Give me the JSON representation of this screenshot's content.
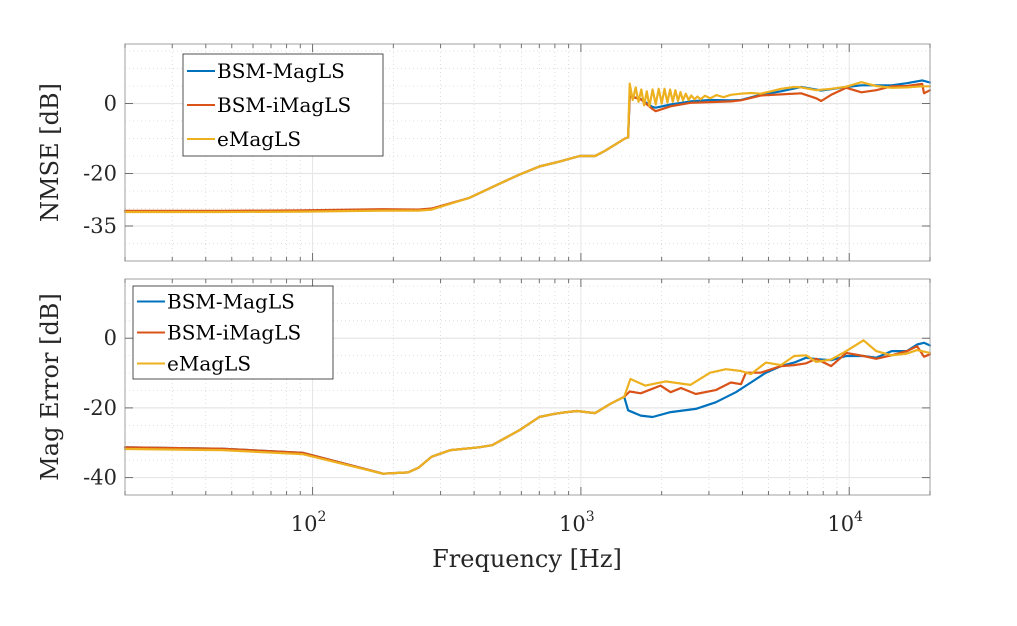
{
  "chart_data": [
    {
      "type": "line",
      "id": "nmse",
      "title": "",
      "xlabel": "",
      "ylabel": "NMSE [dB]",
      "xscale": "log",
      "xlim": [
        20,
        20000
      ],
      "ylim": [
        -45,
        17
      ],
      "yticks": [
        -35,
        -20,
        0
      ],
      "ytick_labels": [
        "-35",
        "-20",
        "0"
      ],
      "xticks": [
        100,
        1000,
        10000
      ],
      "xtick_labels": [
        "",
        "",
        ""
      ],
      "grid": true,
      "minor_grid": true,
      "legend_position": "top-left",
      "series": [
        {
          "name": "BSM-MagLS",
          "color": "#0072BD",
          "x": [
            20,
            46,
            92,
            183,
            248,
            278,
            383,
            495,
            590,
            700,
            832,
            990,
            1130,
            1230,
            1460,
            1500,
            1520,
            1670,
            1850,
            1900,
            2160,
            2560,
            3030,
            3620,
            3950,
            4680,
            5570,
            6620,
            7860,
            9750,
            11100,
            14400,
            16400,
            18700,
            20000
          ],
          "y": [
            -30.8,
            -30.8,
            -30.6,
            -30.3,
            -30.4,
            -30.1,
            -27,
            -23,
            -20.3,
            -18,
            -16.6,
            -15,
            -15,
            -13.5,
            -10,
            -9.7,
            2.1,
            1.3,
            -1.0,
            -1.2,
            -0.3,
            0.6,
            1.0,
            0.9,
            1.0,
            2.5,
            3.5,
            4.7,
            3.7,
            4.7,
            5.2,
            5.2,
            5.8,
            6.6,
            6.0
          ]
        },
        {
          "name": "BSM-iMagLS",
          "color": "#D95319",
          "x": [
            20,
            46,
            92,
            183,
            248,
            278,
            383,
            495,
            590,
            700,
            832,
            990,
            1130,
            1230,
            1460,
            1500,
            1520,
            1670,
            1850,
            1900,
            2160,
            2560,
            3030,
            3620,
            3950,
            4680,
            5570,
            6620,
            7530,
            7860,
            8570,
            9750,
            11100,
            12600,
            14400,
            16400,
            17900,
            18700,
            19000,
            20000
          ],
          "y": [
            -30.7,
            -30.7,
            -30.5,
            -30.2,
            -30.3,
            -30.0,
            -27,
            -23,
            -20.3,
            -18,
            -16.6,
            -15,
            -15,
            -13.5,
            -10,
            -9.7,
            2.1,
            1.2,
            -1.6,
            -2.2,
            -0.8,
            0.2,
            0.4,
            0.6,
            0.9,
            2.3,
            2.6,
            2.9,
            1.5,
            0.7,
            2.5,
            4.5,
            3.2,
            3.8,
            4.9,
            5.0,
            5.4,
            5.6,
            2.9,
            3.8
          ]
        },
        {
          "name": "eMagLS",
          "color": "#EDB120",
          "x": [
            20,
            46,
            92,
            183,
            248,
            278,
            383,
            495,
            590,
            700,
            832,
            990,
            1130,
            1230,
            1460,
            1500,
            1520,
            1560,
            1600,
            1640,
            1680,
            1720,
            1760,
            1800,
            1850,
            1900,
            1950,
            2000,
            2050,
            2100,
            2150,
            2200,
            2250,
            2300,
            2350,
            2400,
            2460,
            2520,
            2580,
            2650,
            2720,
            2790,
            2900,
            3030,
            3200,
            3400,
            3620,
            3950,
            4300,
            4680,
            5110,
            5570,
            6230,
            6620,
            7530,
            8570,
            9750,
            11100,
            12600,
            14400,
            16400,
            18700,
            20000
          ],
          "y": [
            -31.0,
            -31.0,
            -30.9,
            -30.6,
            -30.6,
            -30.3,
            -27,
            -23,
            -20.3,
            -18,
            -16.6,
            -15,
            -15,
            -13.5,
            -10,
            -9.7,
            5.7,
            1.0,
            4.6,
            0.5,
            4.0,
            -0.5,
            3.5,
            -0.8,
            4.0,
            -0.3,
            4.2,
            0.0,
            4.2,
            0.3,
            4.0,
            0.5,
            3.8,
            0.7,
            3.3,
            0.9,
            2.8,
            1.0,
            2.3,
            1.2,
            2.0,
            1.2,
            2.2,
            1.5,
            2.4,
            1.8,
            2.5,
            2.8,
            3.0,
            2.8,
            3.5,
            4.2,
            4.7,
            4.6,
            3.8,
            4.2,
            4.8,
            6.1,
            5.0,
            4.5,
            4.6,
            4.9,
            4.9
          ]
        }
      ]
    },
    {
      "type": "line",
      "id": "mag-error",
      "title": "",
      "xlabel": "Frequency [Hz]",
      "ylabel": "Mag Error [dB]",
      "xscale": "log",
      "xlim": [
        20,
        20000
      ],
      "ylim": [
        -45,
        17
      ],
      "yticks": [
        -40,
        -20,
        0
      ],
      "ytick_labels": [
        "-40",
        "-20",
        "0"
      ],
      "xticks": [
        100,
        1000,
        10000
      ],
      "xtick_labels": [
        "10^2",
        "10^3",
        "10^4"
      ],
      "grid": true,
      "minor_grid": true,
      "legend_position": "top-left",
      "series": [
        {
          "name": "BSM-MagLS",
          "color": "#0072BD",
          "x": [
            20,
            46,
            92,
            183,
            227,
            248,
            278,
            327,
            417,
            467,
            590,
            700,
            798,
            870,
            966,
            1130,
            1290,
            1450,
            1500,
            1670,
            1850,
            2160,
            2680,
            3180,
            3780,
            4300,
            4890,
            5570,
            6230,
            6910,
            7530,
            8570,
            9750,
            11300,
            12600,
            14400,
            16400,
            17900,
            19000,
            20000
          ],
          "y": [
            -31.3,
            -31.7,
            -32.9,
            -38.9,
            -38.5,
            -37.2,
            -34.0,
            -32.1,
            -31.3,
            -30.7,
            -26.4,
            -22.6,
            -21.7,
            -21.3,
            -20.9,
            -21.5,
            -18.8,
            -16.8,
            -20.7,
            -22.2,
            -22.6,
            -21.2,
            -20.3,
            -18.4,
            -15.5,
            -12.7,
            -9.9,
            -8.0,
            -7.0,
            -5.6,
            -6.0,
            -6.3,
            -5.1,
            -5.1,
            -5.6,
            -3.7,
            -3.7,
            -1.8,
            -1.3,
            -2.1
          ]
        },
        {
          "name": "BSM-iMagLS",
          "color": "#D95319",
          "x": [
            20,
            46,
            92,
            183,
            227,
            248,
            278,
            327,
            417,
            467,
            590,
            700,
            798,
            870,
            966,
            1130,
            1290,
            1450,
            1520,
            1670,
            1980,
            2160,
            2360,
            2680,
            3180,
            3620,
            3950,
            4120,
            4680,
            5570,
            6230,
            6910,
            7530,
            8570,
            9750,
            11300,
            12600,
            14400,
            16400,
            17900,
            19000,
            20000
          ],
          "y": [
            -31.3,
            -31.7,
            -32.9,
            -38.9,
            -38.5,
            -37.2,
            -34.0,
            -32.1,
            -31.3,
            -30.7,
            -26.4,
            -22.6,
            -21.7,
            -21.3,
            -20.9,
            -21.5,
            -18.8,
            -16.8,
            -15.3,
            -15.8,
            -13.6,
            -15.5,
            -14.3,
            -16.0,
            -14.9,
            -12.7,
            -13.2,
            -9.9,
            -9.9,
            -8.0,
            -7.7,
            -7.2,
            -5.9,
            -8.0,
            -4.2,
            -5.1,
            -5.9,
            -4.9,
            -3.7,
            -2.3,
            -5.3,
            -4.6
          ]
        },
        {
          "name": "eMagLS",
          "color": "#EDB120",
          "x": [
            20,
            46,
            92,
            183,
            227,
            248,
            278,
            327,
            417,
            467,
            590,
            700,
            798,
            870,
            966,
            1130,
            1290,
            1450,
            1530,
            1740,
            2070,
            2560,
            3030,
            3470,
            3950,
            4300,
            4890,
            5570,
            6230,
            6910,
            7530,
            8570,
            9750,
            11300,
            12600,
            14400,
            16400,
            17900,
            20000
          ],
          "y": [
            -31.8,
            -32.1,
            -33.3,
            -38.9,
            -38.5,
            -37.2,
            -34.0,
            -32.1,
            -31.3,
            -30.7,
            -26.4,
            -22.6,
            -21.7,
            -21.3,
            -20.9,
            -21.5,
            -18.8,
            -16.8,
            -11.7,
            -13.6,
            -12.4,
            -13.4,
            -9.9,
            -8.9,
            -9.4,
            -10.3,
            -7.0,
            -7.7,
            -5.1,
            -4.9,
            -6.8,
            -6.1,
            -3.7,
            -0.6,
            -3.7,
            -4.9,
            -4.4,
            -3.4,
            -4.2
          ]
        }
      ]
    }
  ]
}
